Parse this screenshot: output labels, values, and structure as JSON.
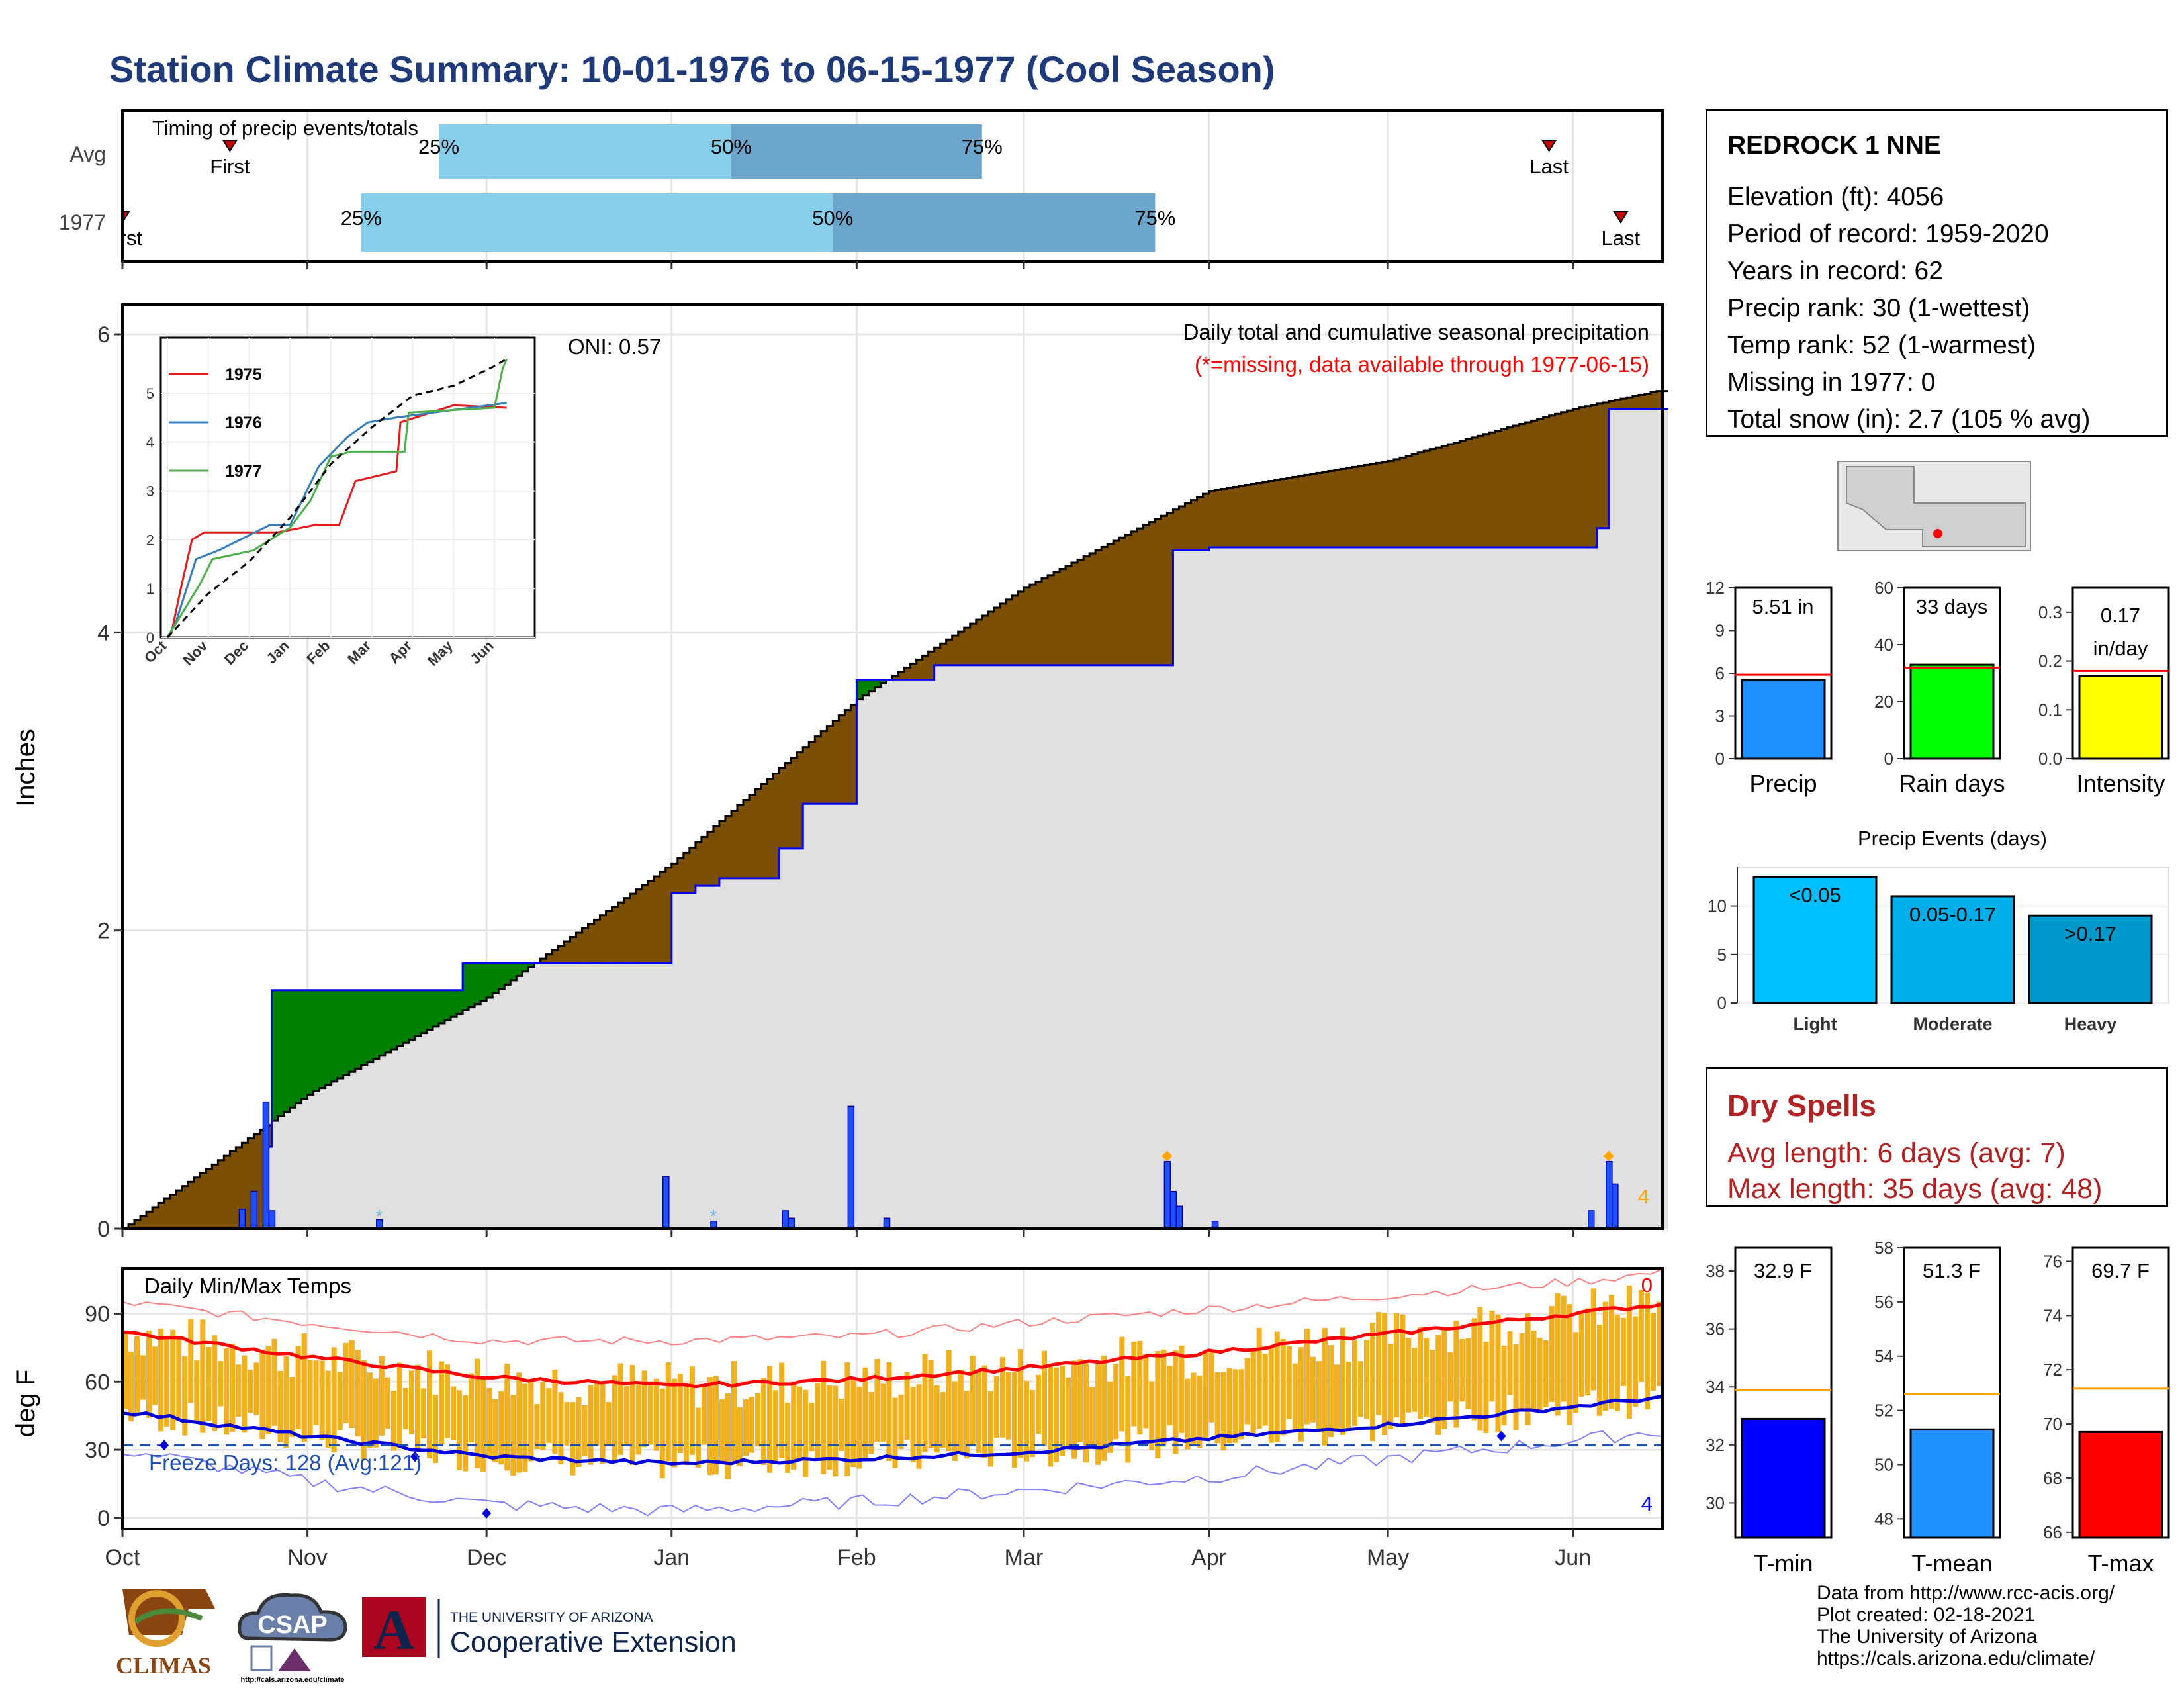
{
  "title": "Station Climate Summary: 10-01-1976 to 06-15-1977 (Cool Season)",
  "timing": {
    "panel_title": "Timing of precip events/totals",
    "rows": [
      {
        "label": "Avg",
        "first": "1976-10-19",
        "p25": "1976-11-23",
        "p50": "1977-01-11",
        "p75": "1977-02-22",
        "last": "1977-05-28",
        "first_label": "First",
        "p25_label": "25%",
        "p50_label": "50%",
        "p75_label": "75%",
        "last_label": "Last"
      },
      {
        "label": "1977",
        "first": "1976-10-01",
        "p25": "1976-11-10",
        "p50": "1977-01-28",
        "p75": "1977-03-23",
        "last": "1977-06-09",
        "first_label": "First",
        "p25_label": "25%",
        "p50_label": "50%",
        "p75_label": "75%",
        "last_label": "Last"
      }
    ]
  },
  "precip": {
    "ylabel": "Inches",
    "panel_title": "Daily total and cumulative seasonal precipitation",
    "missing_note": "(*=missing, data available through 1977-06-15)",
    "oni": "ONI: 0.57",
    "count_label": "4",
    "yticks": [
      "0",
      "2",
      "4",
      "6"
    ]
  },
  "chart_data": [
    {
      "type": "area",
      "title": "Daily total and cumulative seasonal precipitation",
      "ylabel": "Inches",
      "ylim": [
        0,
        6.2
      ],
      "x_range": [
        "1976-10-01",
        "1977-06-15"
      ],
      "series": [
        {
          "name": "Average cumulative",
          "points": [
            [
              "1976-10-01",
              0.0
            ],
            [
              "1976-10-15",
              0.4
            ],
            [
              "1976-11-01",
              0.9
            ],
            [
              "1976-12-01",
              1.55
            ],
            [
              "1977-01-01",
              2.45
            ],
            [
              "1977-02-01",
              3.55
            ],
            [
              "1977-03-01",
              4.3
            ],
            [
              "1977-04-01",
              4.95
            ],
            [
              "1977-05-01",
              5.15
            ],
            [
              "1977-06-01",
              5.5
            ],
            [
              "1977-06-15",
              5.62
            ]
          ]
        },
        {
          "name": "1977 cumulative",
          "points": [
            [
              "1976-10-01",
              0.0
            ],
            [
              "1976-10-24",
              0.0
            ],
            [
              "1976-10-25",
              0.55
            ],
            [
              "1976-10-26",
              1.6
            ],
            [
              "1976-11-26",
              1.6
            ],
            [
              "1976-11-27",
              1.78
            ],
            [
              "1976-12-25",
              1.78
            ],
            [
              "1976-12-31",
              1.78
            ],
            [
              "1977-01-01",
              2.25
            ],
            [
              "1977-01-05",
              2.3
            ],
            [
              "1977-01-09",
              2.35
            ],
            [
              "1977-01-19",
              2.55
            ],
            [
              "1977-01-23",
              2.85
            ],
            [
              "1977-01-31",
              2.85
            ],
            [
              "1977-02-01",
              3.68
            ],
            [
              "1977-02-14",
              3.78
            ],
            [
              "1977-03-25",
              3.78
            ],
            [
              "1977-03-26",
              4.55
            ],
            [
              "1977-04-01",
              4.57
            ],
            [
              "1977-06-05",
              4.7
            ],
            [
              "1977-06-07",
              5.5
            ],
            [
              "1977-06-15",
              5.5
            ]
          ]
        }
      ],
      "daily_events": [
        [
          "1976-10-21",
          0.13
        ],
        [
          "1976-10-23",
          0.25
        ],
        [
          "1976-10-25",
          0.85
        ],
        [
          "1976-10-26",
          0.12
        ],
        [
          "1976-11-13",
          0.06
        ],
        [
          "1976-12-31",
          0.35
        ],
        [
          "1977-01-08",
          0.05
        ],
        [
          "1977-01-20",
          0.12
        ],
        [
          "1977-01-21",
          0.07
        ],
        [
          "1977-01-31",
          0.82
        ],
        [
          "1977-02-06",
          0.07
        ],
        [
          "1977-03-25",
          0.45
        ],
        [
          "1977-03-26",
          0.25
        ],
        [
          "1977-03-27",
          0.15
        ],
        [
          "1977-04-02",
          0.05
        ],
        [
          "1977-06-04",
          0.12
        ],
        [
          "1977-06-07",
          0.45
        ],
        [
          "1977-06-08",
          0.3
        ]
      ]
    },
    {
      "type": "line",
      "title": "Daily Min/Max Temps",
      "ylabel": "deg F",
      "ylim": [
        -5,
        110
      ],
      "x_range": [
        "1976-10-01",
        "1977-06-15"
      ],
      "series": [
        {
          "name": "Avg max",
          "points": [
            [
              "1976-10-01",
              82
            ],
            [
              "1976-11-01",
              71
            ],
            [
              "1976-12-01",
              62
            ],
            [
              "1977-01-01",
              58
            ],
            [
              "1977-02-01",
              61
            ],
            [
              "1977-03-01",
              66
            ],
            [
              "1977-04-01",
              73
            ],
            [
              "1977-05-01",
              81
            ],
            [
              "1977-06-01",
              90
            ],
            [
              "1977-06-15",
              94
            ]
          ]
        },
        {
          "name": "Avg min",
          "points": [
            [
              "1976-10-01",
              47
            ],
            [
              "1976-11-01",
              36
            ],
            [
              "1976-12-01",
              27
            ],
            [
              "1977-01-01",
              24
            ],
            [
              "1977-02-01",
              26
            ],
            [
              "1977-03-01",
              29
            ],
            [
              "1977-04-01",
              35
            ],
            [
              "1977-05-01",
              41
            ],
            [
              "1977-06-01",
              49
            ],
            [
              "1977-06-15",
              53
            ]
          ]
        },
        {
          "name": "Record max",
          "points": [
            [
              "1976-10-01",
              95
            ],
            [
              "1976-11-01",
              86
            ],
            [
              "1976-12-01",
              78
            ],
            [
              "1977-01-01",
              78
            ],
            [
              "1977-02-01",
              80
            ],
            [
              "1977-03-01",
              86
            ],
            [
              "1977-04-01",
              92
            ],
            [
              "1977-05-01",
              98
            ],
            [
              "1977-06-01",
              104
            ],
            [
              "1977-06-15",
              108
            ]
          ]
        },
        {
          "name": "Record min",
          "points": [
            [
              "1976-10-01",
              30
            ],
            [
              "1976-11-01",
              16
            ],
            [
              "1976-12-01",
              6
            ],
            [
              "1977-01-01",
              3
            ],
            [
              "1977-02-01",
              7
            ],
            [
              "1977-03-01",
              12
            ],
            [
              "1977-04-01",
              18
            ],
            [
              "1977-05-01",
              26
            ],
            [
              "1977-06-01",
              34
            ],
            [
              "1977-06-15",
              38
            ]
          ]
        }
      ],
      "freeze_line": 32,
      "freeze_label": "Freeze Days: 128 (Avg:121)",
      "record_high_count": "0",
      "record_low_count": "4"
    },
    {
      "type": "bar",
      "categories": [
        "Precip"
      ],
      "values": [
        5.51
      ],
      "avg": 5.9,
      "label": "5.51 in",
      "ylim": [
        0,
        12
      ],
      "yticks": [
        "0",
        "3",
        "6",
        "9",
        "12"
      ],
      "color": "#1e90ff"
    },
    {
      "type": "bar",
      "categories": [
        "Rain days"
      ],
      "values": [
        33
      ],
      "avg": 32,
      "label": "33 days",
      "ylim": [
        0,
        60
      ],
      "yticks": [
        "0",
        "20",
        "40",
        "60"
      ],
      "color": "#00ff00"
    },
    {
      "type": "bar",
      "categories": [
        "Intensity"
      ],
      "values": [
        0.17
      ],
      "avg": 0.18,
      "label": "0.17 in/day",
      "ylim": [
        0,
        0.35
      ],
      "yticks": [
        "0.0",
        "0.1",
        "0.2",
        "0.3"
      ],
      "color": "#ffff00"
    },
    {
      "type": "bar",
      "title": "Precip Events (days)",
      "categories": [
        "Light",
        "Moderate",
        "Heavy"
      ],
      "values": [
        13,
        11,
        9
      ],
      "bar_labels": [
        "<0.05",
        "0.05-0.17",
        ">0.17"
      ],
      "ylim": [
        0,
        14
      ],
      "yticks": [
        "0",
        "5",
        "10"
      ],
      "colors": [
        "#00bfff",
        "#00aeea",
        "#0099cc"
      ]
    },
    {
      "type": "bar",
      "categories": [
        "T-min"
      ],
      "values": [
        32.9
      ],
      "avg": 33.9,
      "label": "32.9 F",
      "ylim": [
        28.8,
        38.8
      ],
      "yticks": [
        "30",
        "32",
        "34",
        "36",
        "38"
      ],
      "color": "#0000ff"
    },
    {
      "type": "bar",
      "categories": [
        "T-mean"
      ],
      "values": [
        51.3
      ],
      "avg": 52.6,
      "label": "51.3 F",
      "ylim": [
        47.3,
        58
      ],
      "yticks": [
        "48",
        "50",
        "52",
        "54",
        "56",
        "58"
      ],
      "color": "#1e90ff"
    },
    {
      "type": "bar",
      "categories": [
        "T-max"
      ],
      "values": [
        69.7
      ],
      "avg": 71.3,
      "label": "69.7 F",
      "ylim": [
        65.8,
        76.5
      ],
      "yticks": [
        "66",
        "68",
        "70",
        "72",
        "74",
        "76"
      ],
      "color": "#ff0000"
    }
  ],
  "inset": {
    "oni_note": "ONI: 0.57",
    "legend": [
      {
        "name": "1975",
        "color": "#e41a1c"
      },
      {
        "name": "1976",
        "color": "#377eb8"
      },
      {
        "name": "1977",
        "color": "#4daf4a"
      }
    ],
    "yticks": [
      "0",
      "1",
      "2",
      "3",
      "4",
      "5"
    ],
    "xticks": [
      "Oct",
      "Nov",
      "Dec",
      "Jan",
      "Feb",
      "Mar",
      "Apr",
      "May",
      "Jun"
    ]
  },
  "temps": {
    "panel_title": "Daily Min/Max Temps",
    "ylabel": "deg F",
    "yticks": [
      "0",
      "30",
      "60",
      "90"
    ],
    "freeze_label": "Freeze Days: 128 (Avg:121)",
    "count_high": "0",
    "count_low": "4"
  },
  "months": [
    "Oct",
    "Nov",
    "Dec",
    "Jan",
    "Feb",
    "Mar",
    "Apr",
    "May",
    "Jun"
  ],
  "station": {
    "name": "REDROCK 1 NNE",
    "elevation": "Elevation (ft): 4056",
    "period": "Period of record: 1959-2020",
    "years": "Years in record: 62",
    "precip_rank": "Precip rank: 30 (1-wettest)",
    "temp_rank": "Temp rank: 52 (1-warmest)",
    "missing": "Missing in 1977: 0",
    "snow": "Total snow (in): 2.7 (105 % avg)"
  },
  "dry_spells": {
    "title": "Dry Spells",
    "avg_length": "Avg length: 6 days (avg: 7)",
    "max_length": "Max length: 35 days (avg: 48)"
  },
  "mini_labels": {
    "precip": "Precip",
    "rain_days": "Rain days",
    "intensity": "Intensity",
    "events_title": "Precip Events (days)",
    "tmin": "T-min",
    "tmean": "T-mean",
    "tmax": "T-max",
    "intensity_line1": "0.17",
    "intensity_line2": "in/day"
  },
  "footer": {
    "line1": "Data from http://www.rcc-acis.org/",
    "line2": "Plot created: 02-18-2021",
    "line3": "The University of Arizona",
    "line4": "https://cals.arizona.edu/climate/"
  },
  "logos": {
    "climas": "CLIMAS",
    "csap": "CSAP",
    "csap_url": "http://cals.arizona.edu/climate",
    "ua_small": "THE UNIVERSITY OF ARIZONA",
    "ua_big": "Cooperative Extension",
    "ua_letter": "A"
  },
  "colors": {
    "above_avg": "#7b4f05",
    "below_avg": "#008000",
    "cum_line": "#0000ff",
    "timing_light": "#87ceeb",
    "timing_dark": "#6ca6cd",
    "temp_bar": "#f0b020",
    "title": "#1f3a7a",
    "dry": "#b22222"
  }
}
